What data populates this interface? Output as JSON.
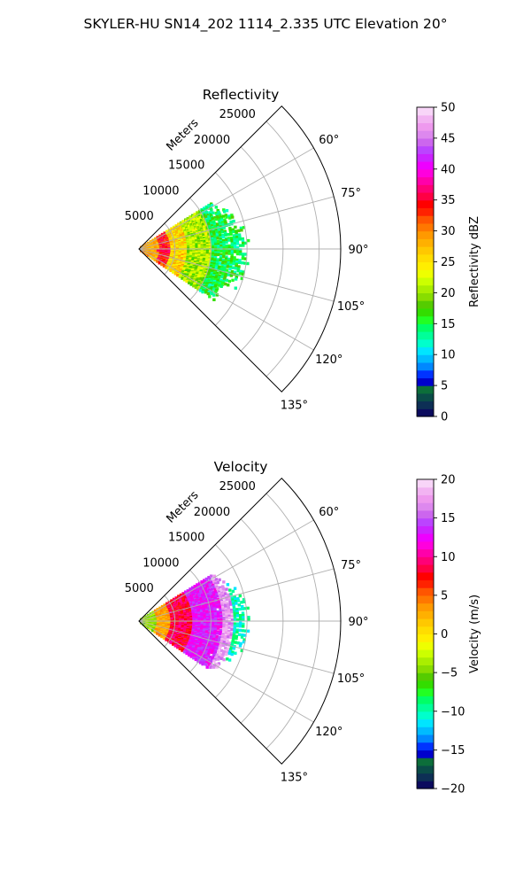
{
  "suptitle": "SKYLER-HU  SN14_202  1114_2.335 UTC Elevation 20°",
  "chart_data": [
    {
      "type": "heatmap",
      "title": "Reflectivity",
      "radial_label": "Meters",
      "radial_ticks": [
        "5000",
        "10000",
        "15000",
        "20000",
        "25000"
      ],
      "radial_tick_values": [
        5000,
        10000,
        15000,
        20000,
        25000
      ],
      "rmax": 28000,
      "theta_ticks": [
        "60°",
        "75°",
        "90°",
        "105°",
        "120°",
        "135°"
      ],
      "theta_tick_values": [
        60,
        75,
        90,
        105,
        120,
        135
      ],
      "theta_range": [
        45,
        135
      ],
      "grid": true,
      "colorbar": {
        "label": "Reflectivity dBZ",
        "ticks": [
          "0",
          "5",
          "10",
          "15",
          "20",
          "25",
          "30",
          "35",
          "40",
          "45",
          "50"
        ],
        "range": [
          0,
          50
        ],
        "colors": [
          "#0b0b5e",
          "#0d2f55",
          "#0a4c48",
          "#0c6e3a",
          "#0000cc",
          "#0033ff",
          "#0088ff",
          "#00bbff",
          "#00e5ff",
          "#00ffcc",
          "#00ff99",
          "#00ff66",
          "#22ff22",
          "#33dd00",
          "#55cc00",
          "#88dd00",
          "#aaee00",
          "#ccff00",
          "#eeff00",
          "#ffee00",
          "#ffdd00",
          "#ffc800",
          "#ffb000",
          "#ff9900",
          "#ff7700",
          "#ff5500",
          "#ff2200",
          "#ff0000",
          "#ff0044",
          "#ff0077",
          "#ff00aa",
          "#ff00dd",
          "#ee00ff",
          "#cc22ff",
          "#bb44ff",
          "#cc66ee",
          "#dd88ee",
          "#ee99ee",
          "#f2b3f2",
          "#f8d5f8"
        ]
      },
      "echo": {
        "range_m": [
          0,
          15500
        ],
        "azimuth_deg": [
          58,
          125
        ]
      }
    },
    {
      "type": "heatmap",
      "title": "Velocity",
      "radial_label": "Meters",
      "radial_ticks": [
        "5000",
        "10000",
        "15000",
        "20000",
        "25000"
      ],
      "radial_tick_values": [
        5000,
        10000,
        15000,
        20000,
        25000
      ],
      "rmax": 28000,
      "theta_ticks": [
        "60°",
        "75°",
        "90°",
        "105°",
        "120°",
        "135°"
      ],
      "theta_tick_values": [
        60,
        75,
        90,
        105,
        120,
        135
      ],
      "theta_range": [
        45,
        135
      ],
      "grid": true,
      "colorbar": {
        "label": "Velocity (m/s)",
        "ticks": [
          "−20",
          "−15",
          "−10",
          "−5",
          "0",
          "5",
          "10",
          "15",
          "20"
        ],
        "range": [
          -20,
          20
        ],
        "colors": [
          "#0b0b5e",
          "#0d2f55",
          "#0a4c48",
          "#0c6e3a",
          "#0000cc",
          "#0033ff",
          "#0088ff",
          "#00bbff",
          "#00e5ff",
          "#00ffcc",
          "#00ff99",
          "#00ff66",
          "#22ff22",
          "#33dd00",
          "#55cc00",
          "#88dd00",
          "#aaee00",
          "#ccff00",
          "#eeff00",
          "#ffee00",
          "#ffdd00",
          "#ffc800",
          "#ffb000",
          "#ff9900",
          "#ff7700",
          "#ff5500",
          "#ff2200",
          "#ff0000",
          "#ff0044",
          "#ff0077",
          "#ff00aa",
          "#ff00dd",
          "#ee00ff",
          "#cc22ff",
          "#bb44ff",
          "#cc66ee",
          "#dd88ee",
          "#ee99ee",
          "#f2b3f2",
          "#f8d5f8"
        ]
      },
      "echo": {
        "range_m": [
          0,
          15500
        ],
        "azimuth_deg": [
          58,
          125
        ]
      }
    }
  ]
}
